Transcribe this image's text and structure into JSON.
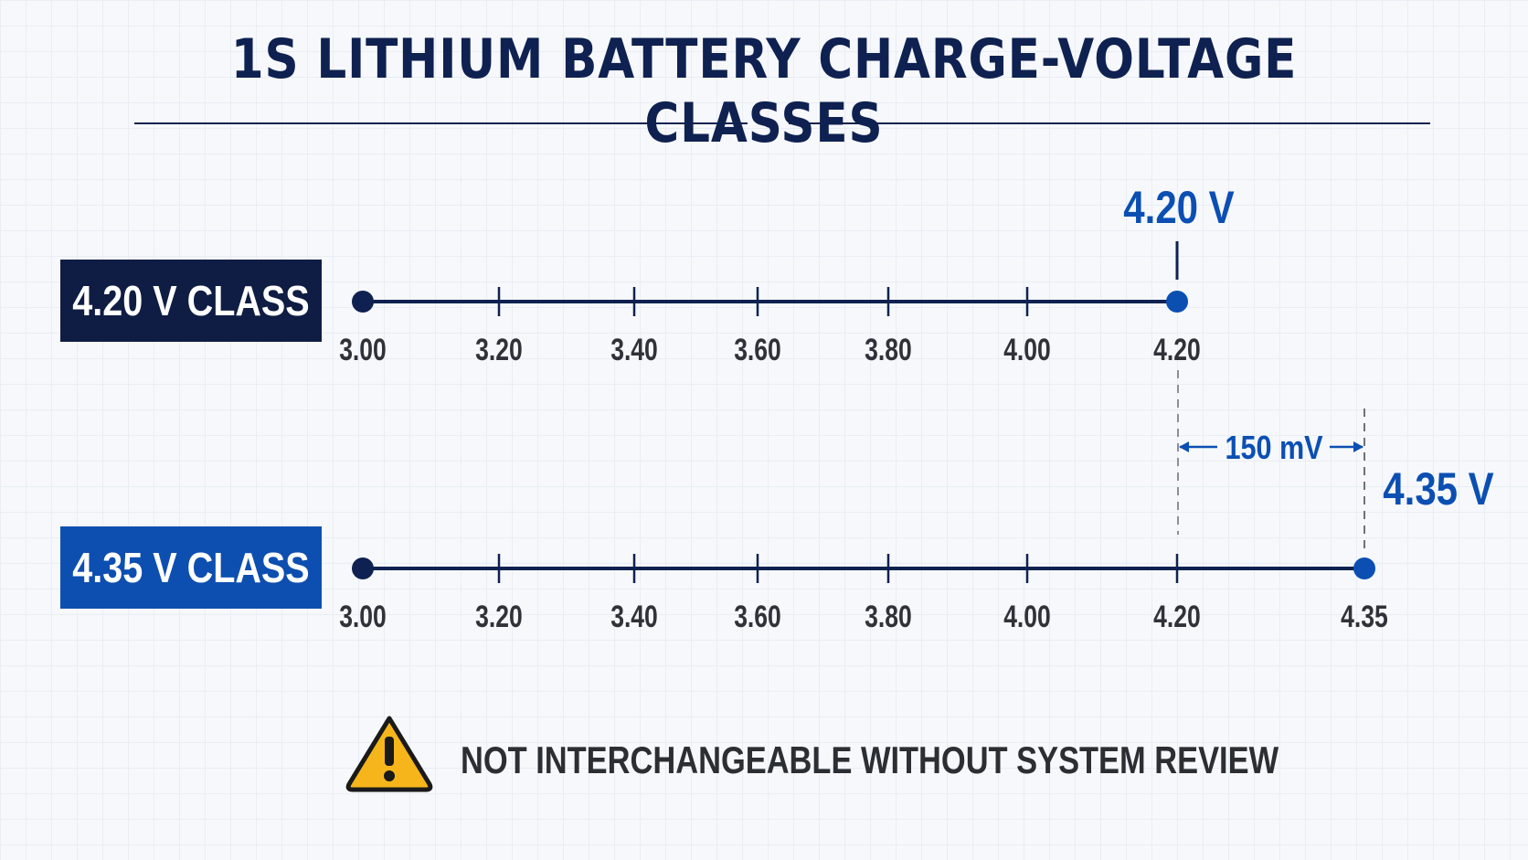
{
  "title": "1S LITHIUM BATTERY CHARGE-VOLTAGE CLASSES",
  "colors": {
    "navy": "#0f2150",
    "blue": "#0b4fb3",
    "dark_label_bg": "#0f1d44",
    "blue_label_bg": "#0d4fb0",
    "tick_text": "#2f3238",
    "warning_yellow": "#f6b61b"
  },
  "rows": [
    {
      "label": "4.20 V CLASS",
      "label_style": "dark",
      "start": 3.0,
      "end": 4.2,
      "ticks": [
        "3.00",
        "3.20",
        "3.40",
        "3.60",
        "3.80",
        "4.00",
        "4.20"
      ],
      "callout": "4.20 V"
    },
    {
      "label": "4.35 V CLASS",
      "label_style": "blue",
      "start": 3.0,
      "end": 4.35,
      "ticks": [
        "3.00",
        "3.20",
        "3.40",
        "3.60",
        "3.80",
        "4.00",
        "4.20",
        "4.35"
      ],
      "callout": "4.35 V"
    }
  ],
  "delta_label": "150 mV",
  "warning": {
    "icon": "warning-triangle-icon",
    "text": "NOT INTERCHANGEABLE WITHOUT SYSTEM REVIEW"
  }
}
